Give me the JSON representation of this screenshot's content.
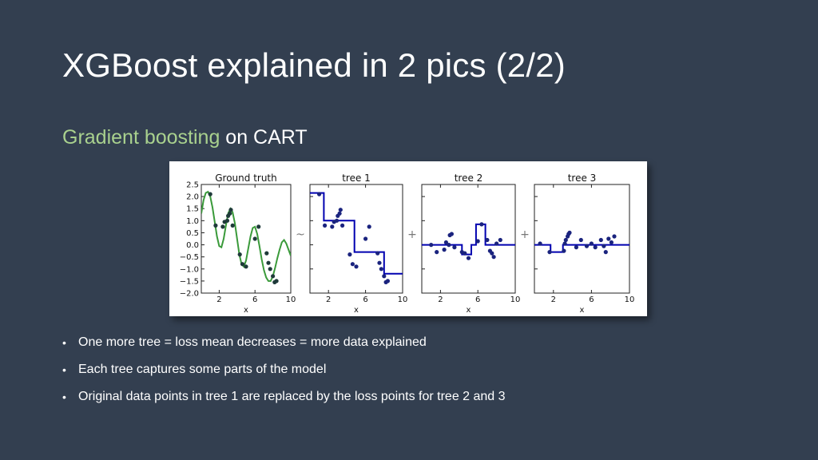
{
  "slide": {
    "title": "XGBoost explained in 2 pics (2/2)",
    "subtitle_accent": "Gradient boosting",
    "subtitle_rest": " on CART",
    "bullets": [
      "One more tree = loss mean decreases = more data explained",
      "Each tree captures some parts of the model",
      "Original data points in tree 1 are replaced by the loss points for tree 2 and 3"
    ],
    "colors": {
      "background": "#333f50",
      "title": "#ffffff",
      "accent": "#a9d18e"
    }
  },
  "operators": [
    "~",
    "+",
    "+"
  ],
  "chart_data": [
    {
      "type": "line",
      "title": "Ground truth",
      "xlabel": "x",
      "xlim": [
        0,
        10
      ],
      "ylim": [
        -2.0,
        2.5
      ],
      "xticks": [
        2,
        6,
        10
      ],
      "yticks": [
        2.5,
        2.0,
        1.5,
        1.0,
        0.5,
        0.0,
        -0.5,
        -1.0,
        -1.5,
        -2.0
      ],
      "ytick_labels": [
        "2.5",
        "2.0",
        "1.5",
        "1.0",
        "0.5",
        "0.0",
        "−0.5",
        "−1.0",
        "−1.5",
        "−2.0"
      ],
      "line_color": "#3a9a3a",
      "point_color": "#1f3a3a",
      "curve": {
        "x": [
          0.0,
          0.25,
          0.5,
          0.75,
          1.0,
          1.25,
          1.5,
          1.75,
          2.0,
          2.25,
          2.5,
          2.75,
          3.0,
          3.25,
          3.5,
          3.75,
          4.0,
          4.25,
          4.5,
          4.75,
          5.0,
          5.25,
          5.5,
          5.75,
          6.0,
          6.25,
          6.5,
          6.75,
          7.0,
          7.25,
          7.5,
          7.75,
          8.0,
          8.25,
          8.5,
          8.75,
          9.0,
          9.25,
          9.5,
          9.75,
          10.0
        ],
        "y": [
          1.3,
          1.85,
          2.15,
          2.2,
          2.0,
          1.55,
          0.95,
          0.35,
          -0.05,
          -0.1,
          0.25,
          0.8,
          1.3,
          1.5,
          1.35,
          0.9,
          0.25,
          -0.4,
          -0.8,
          -0.9,
          -0.65,
          -0.15,
          0.35,
          0.7,
          0.75,
          0.45,
          -0.05,
          -0.6,
          -1.05,
          -1.35,
          -1.5,
          -1.5,
          -1.3,
          -0.95,
          -0.55,
          -0.2,
          0.1,
          0.2,
          0.05,
          -0.2,
          -0.45
        ]
      },
      "points": {
        "x": [
          1.0,
          1.6,
          2.4,
          2.6,
          2.9,
          3.0,
          3.2,
          3.3,
          3.5,
          4.3,
          4.6,
          5.0,
          6.0,
          6.4,
          7.3,
          7.5,
          7.7,
          8.0,
          8.2,
          8.4
        ],
        "y": [
          2.1,
          0.8,
          0.75,
          0.95,
          1.0,
          1.2,
          1.3,
          1.45,
          0.8,
          -0.4,
          -0.8,
          -0.9,
          0.25,
          0.75,
          -0.35,
          -0.75,
          -1.0,
          -1.3,
          -1.55,
          -1.5
        ]
      }
    },
    {
      "type": "line",
      "title": "tree 1",
      "xlabel": "x",
      "xlim": [
        0,
        10
      ],
      "ylim": [
        -2.0,
        2.5
      ],
      "xticks": [
        2,
        6,
        10
      ],
      "line_color": "#0000b0",
      "point_color": "#1a237e",
      "step": {
        "x": [
          0.0,
          1.5,
          1.5,
          4.8,
          4.8,
          8.0,
          8.0,
          10.0
        ],
        "y": [
          2.15,
          2.15,
          1.0,
          1.0,
          -0.3,
          -0.3,
          -1.2,
          -1.2
        ]
      },
      "points": {
        "x": [
          1.0,
          1.6,
          2.4,
          2.6,
          2.9,
          3.0,
          3.2,
          3.3,
          3.5,
          4.3,
          4.6,
          5.0,
          6.0,
          6.4,
          7.3,
          7.5,
          7.7,
          8.0,
          8.2,
          8.4
        ],
        "y": [
          2.1,
          0.8,
          0.75,
          0.95,
          1.0,
          1.2,
          1.3,
          1.45,
          0.8,
          -0.4,
          -0.8,
          -0.9,
          0.25,
          0.75,
          -0.35,
          -0.75,
          -1.0,
          -1.3,
          -1.55,
          -1.5
        ]
      }
    },
    {
      "type": "line",
      "title": "tree 2",
      "xlabel": "x",
      "xlim": [
        0,
        10
      ],
      "ylim": [
        -2.0,
        2.5
      ],
      "xticks": [
        2,
        6,
        10
      ],
      "line_color": "#0000b0",
      "point_color": "#1a237e",
      "step": {
        "x": [
          0.0,
          4.3,
          4.3,
          5.3,
          5.3,
          5.8,
          5.8,
          6.8,
          6.8,
          10.0
        ],
        "y": [
          0.0,
          0.0,
          -0.4,
          -0.4,
          0.0,
          0.0,
          0.85,
          0.85,
          0.0,
          0.0
        ]
      },
      "points": {
        "x": [
          1.0,
          1.6,
          2.4,
          2.6,
          2.9,
          3.0,
          3.2,
          3.5,
          4.3,
          4.6,
          5.0,
          6.0,
          6.4,
          7.0,
          7.3,
          7.5,
          7.7,
          8.0,
          8.4
        ],
        "y": [
          0.0,
          -0.3,
          -0.2,
          0.1,
          0.0,
          0.4,
          0.45,
          -0.1,
          -0.3,
          -0.35,
          -0.55,
          0.15,
          0.85,
          0.2,
          -0.25,
          -0.35,
          -0.5,
          0.05,
          0.2
        ]
      }
    },
    {
      "type": "line",
      "title": "tree 3",
      "xlabel": "x",
      "xlim": [
        0,
        10
      ],
      "ylim": [
        -2.0,
        2.5
      ],
      "xticks": [
        2,
        6,
        10
      ],
      "line_color": "#0000b0",
      "point_color": "#1a237e",
      "step": {
        "x": [
          0.0,
          1.7,
          1.7,
          3.0,
          3.0,
          3.9,
          3.9,
          10.0
        ],
        "y": [
          0.0,
          0.0,
          -0.3,
          -0.3,
          0.0,
          0.0,
          0.0,
          0.0
        ]
      },
      "points": {
        "x": [
          0.6,
          1.6,
          3.1,
          3.2,
          3.3,
          3.5,
          3.6,
          3.7,
          4.4,
          4.9,
          5.5,
          6.0,
          6.4,
          7.0,
          7.3,
          7.5,
          7.8,
          8.1,
          8.4
        ],
        "y": [
          0.05,
          -0.3,
          -0.25,
          0.05,
          0.2,
          0.35,
          0.45,
          0.5,
          -0.1,
          0.2,
          -0.05,
          0.05,
          -0.1,
          0.2,
          -0.05,
          -0.3,
          0.25,
          0.1,
          0.35
        ]
      }
    }
  ]
}
